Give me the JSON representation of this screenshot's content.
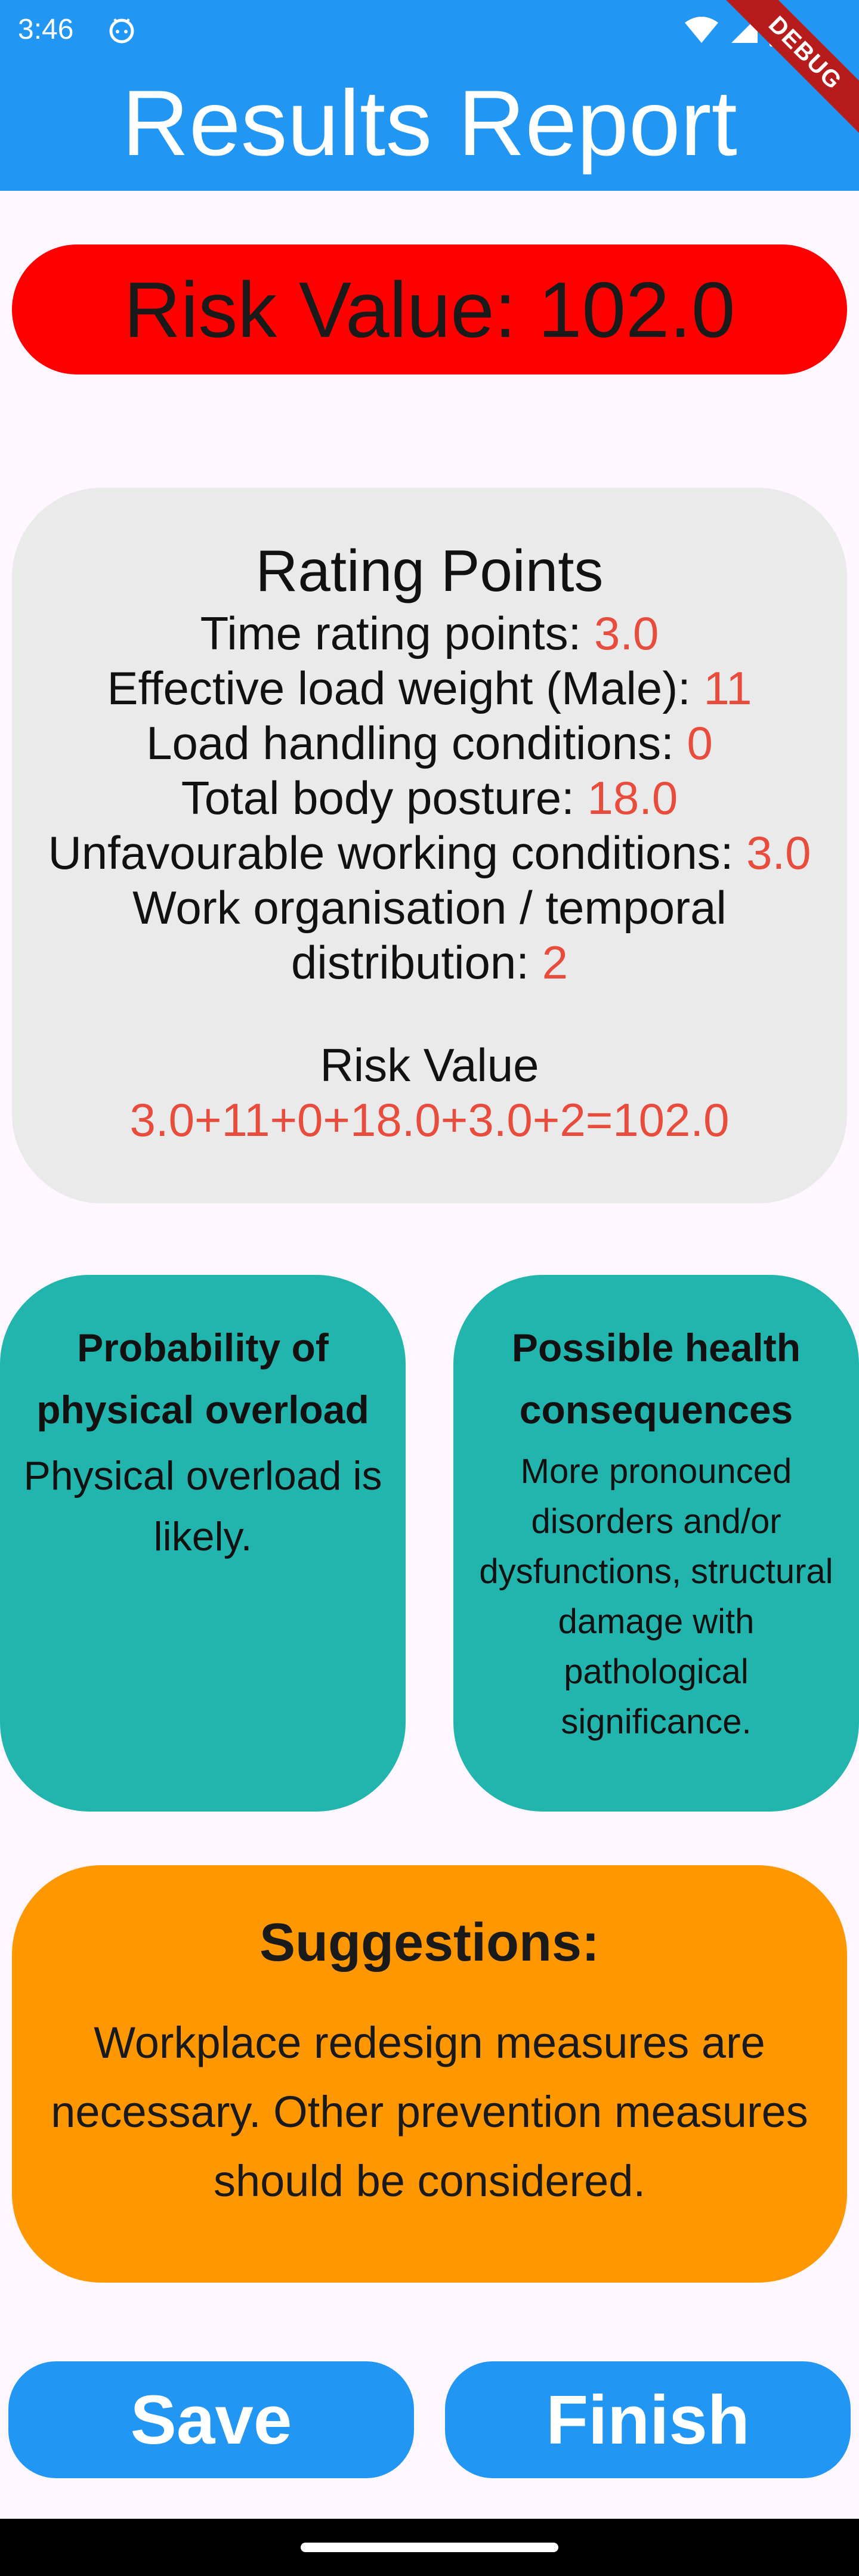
{
  "status_bar": {
    "time": "3:46",
    "app_icon": "android-face-icon",
    "icons": [
      "wifi-icon",
      "signal-icon",
      "battery-icon"
    ]
  },
  "debug_banner": "DEBUG",
  "app_bar": {
    "title": "Results Report"
  },
  "risk_banner": {
    "text": "Risk Value: 102.0"
  },
  "rating_card": {
    "title": "Rating Points",
    "lines": [
      {
        "label": "Time rating points: ",
        "value": "3.0"
      },
      {
        "label": "Effective load weight (Male): ",
        "value": "11"
      },
      {
        "label": "Load handling conditions: ",
        "value": "0"
      },
      {
        "label": "Total body posture: ",
        "value": "18.0"
      },
      {
        "label": "Unfavourable working conditions: ",
        "value": "3.0"
      }
    ],
    "work_org_line1": "Work organisation / temporal",
    "work_org_line2_label": "distribution: ",
    "work_org_value": "2",
    "risk_label": "Risk Value",
    "risk_formula": "3.0+11+0+18.0+3.0+2=102.0"
  },
  "probability_card": {
    "title_line1": "Probability of",
    "title_line2": "physical overload",
    "text_line1": "Physical overload is",
    "text_line2": "likely."
  },
  "health_card": {
    "title_line1": "Possible health",
    "title_line2": "consequences",
    "text_lines": [
      "More pronounced",
      "disorders and/or",
      "dysfunctions, structural",
      "damage with",
      "pathological",
      "significance."
    ]
  },
  "suggestions_card": {
    "title": "Suggestions:",
    "text_lines": [
      "Workplace redesign measures are",
      "necessary. Other prevention measures",
      "should be considered."
    ]
  },
  "buttons": {
    "save": "Save",
    "finish": "Finish"
  },
  "colors": {
    "primary": "#2196f3",
    "risk_red": "#ff0000",
    "value_red": "#e74c3c",
    "card_grey": "#eaeaea",
    "teal": "#22b5ad",
    "orange": "#ff9800"
  }
}
